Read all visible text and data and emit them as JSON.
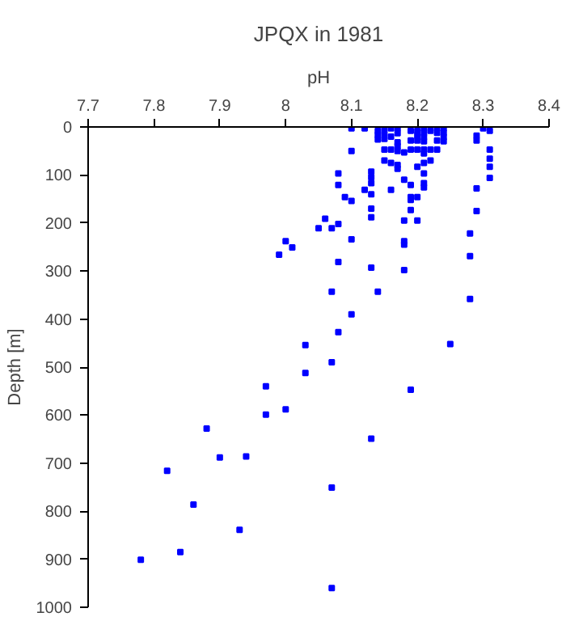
{
  "chart_data": {
    "type": "scatter",
    "title": "JPQX in 1981",
    "xlabel": "pH",
    "ylabel": "Depth [m]",
    "xlim": [
      7.7,
      8.4
    ],
    "xticks": [
      7.7,
      7.8,
      7.9,
      8,
      8.1,
      8.2,
      8.3,
      8.4
    ],
    "ylim": [
      1000,
      0
    ],
    "yticks": [
      0,
      100,
      200,
      300,
      400,
      500,
      600,
      700,
      800,
      900,
      1000
    ],
    "grid": false,
    "marker": "square",
    "series": [
      {
        "color": "#0000ff",
        "x": [
          8.1,
          8.1,
          8.1,
          8.1,
          8.1,
          8.12,
          8.12,
          8.14,
          8.14,
          8.14,
          8.15,
          8.15,
          8.15,
          8.15,
          8.15,
          8.16,
          8.16,
          8.16,
          8.16,
          8.16,
          8.17,
          8.17,
          8.17,
          8.17,
          8.17,
          8.17,
          8.17,
          8.18,
          8.18,
          8.18,
          8.18,
          8.18,
          8.18,
          8.19,
          8.19,
          8.19,
          8.19,
          8.19,
          8.19,
          8.19,
          8.2,
          8.2,
          8.2,
          8.2,
          8.2,
          8.2,
          8.2,
          8.21,
          8.21,
          8.21,
          8.21,
          8.21,
          8.21,
          8.21,
          8.21,
          8.21,
          8.21,
          8.22,
          8.22,
          8.22,
          8.23,
          8.23,
          8.23,
          8.23,
          8.24,
          8.24,
          8.24,
          8.24,
          8.29,
          8.29,
          8.29,
          8.29,
          8.3,
          8.31,
          8.31,
          8.31,
          8.31,
          8.31,
          8.28,
          8.28,
          8.28,
          8.13,
          8.13,
          8.13,
          8.13,
          8.13,
          8.13,
          8.13,
          8.08,
          8.08,
          8.08,
          8.08,
          8.09,
          8.06,
          8.05,
          8.07,
          8.07,
          8.0,
          8.01,
          7.99,
          8.14,
          8.08,
          8.03,
          8.25,
          8.07,
          8.03,
          7.97,
          8.19,
          7.97,
          8.0,
          8.13,
          7.88,
          7.82,
          7.9,
          7.94,
          8.07,
          7.86,
          7.93,
          7.84,
          7.78,
          8.07
        ],
        "values": [
          3,
          50,
          154,
          234,
          390,
          3,
          131,
          8,
          17,
          26,
          3,
          14,
          25,
          47,
          70,
          3,
          20,
          47,
          75,
          131,
          3,
          13,
          32,
          40,
          50,
          79,
          87,
          53,
          110,
          195,
          238,
          245,
          298,
          8,
          28,
          47,
          121,
          146,
          152,
          173,
          8,
          18,
          28,
          47,
          83,
          146,
          195,
          3,
          12,
          21,
          30,
          47,
          55,
          75,
          97,
          117,
          126,
          8,
          47,
          70,
          3,
          12,
          28,
          47,
          3,
          12,
          21,
          30,
          18,
          28,
          128,
          175,
          3,
          8,
          47,
          66,
          83,
          106,
          222,
          269,
          358,
          93,
          105,
          117,
          140,
          170,
          188,
          293,
          97,
          121,
          202,
          281,
          146,
          191,
          211,
          211,
          343,
          238,
          251,
          266,
          343,
          427,
          454,
          452,
          490,
          512,
          540,
          547,
          599,
          588,
          649,
          628,
          716,
          688,
          686,
          751,
          786,
          839,
          885,
          901,
          960
        ]
      }
    ]
  }
}
